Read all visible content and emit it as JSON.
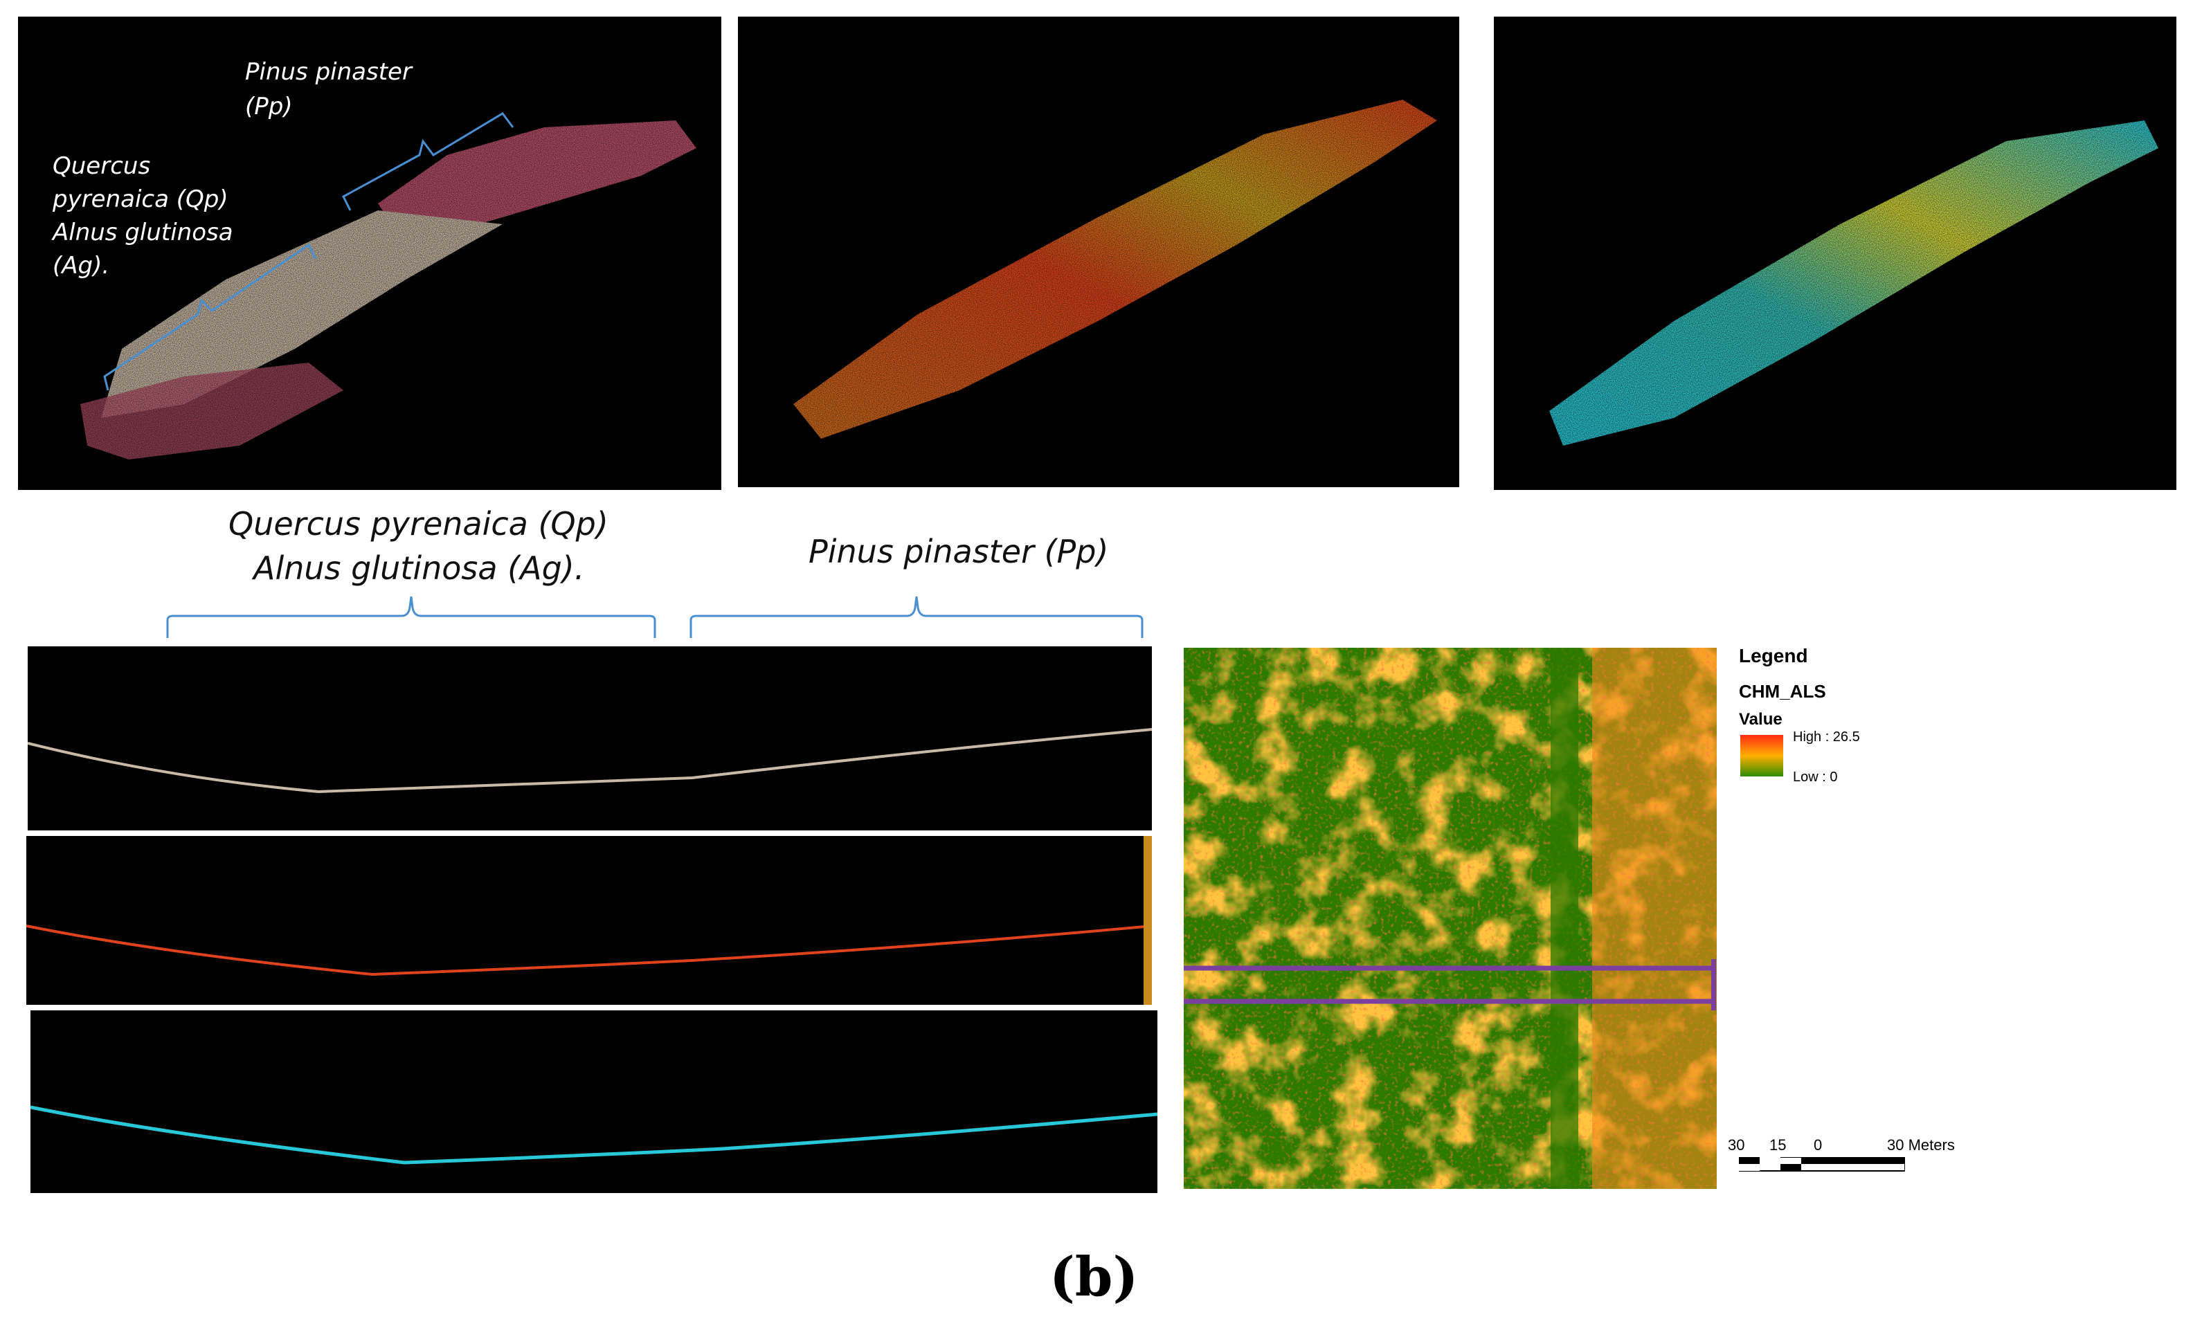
{
  "top_panels": {
    "panel1": {
      "species_pp": [
        "Pinus pinaster",
        "(Pp)"
      ],
      "species_qp_ag": [
        "Quercus",
        "pyrenaica (Qp)",
        "Alnus glutinosa",
        "(Ag)."
      ],
      "colors": {
        "pp": "#b8506a",
        "qp": "#c9b9a6"
      }
    },
    "panel2": {
      "colors": [
        "#d4a21e",
        "#e0431c"
      ]
    },
    "panel3": {
      "colors": [
        "#d8d838",
        "#28c8d8"
      ]
    }
  },
  "profile_labels": {
    "qp_ag_line1": "Quercus pyrenaica (Qp)",
    "qp_ag_line2": "Alnus glutinosa (Ag).",
    "pp": "Pinus pinaster (Pp)"
  },
  "legend": {
    "title": "Legend",
    "layer": "CHM_ALS",
    "field": "Value",
    "high": "High : 26.5",
    "low": "Low : 0",
    "gradient_colors": [
      "#ff2a14",
      "#ffb000",
      "#2d8c00"
    ]
  },
  "scale_bar": {
    "ticks": [
      "30",
      "15",
      "0",
      "30 Meters"
    ]
  },
  "map": {
    "band_color": "#7b3fa0"
  },
  "caption": "(b)"
}
